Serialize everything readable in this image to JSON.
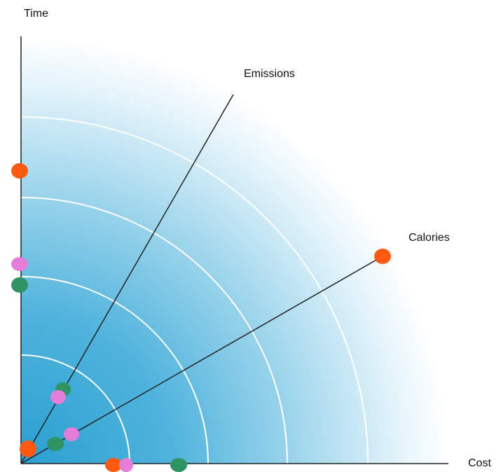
{
  "axes": {
    "time": "Time",
    "cost": "Cost",
    "emissions": "Emissions",
    "calories": "Calories"
  },
  "colors": {
    "gradient_center": "#2a9fd0",
    "gradient_edge": "#ffffff",
    "axis_line": "#222222",
    "ring": "#ffffff",
    "orange": "#ff5a10",
    "pink": "#e27ed8",
    "green": "#2e9463"
  },
  "markers": [
    {
      "axis": "time",
      "color": "orange",
      "name": "marker-time-orange"
    },
    {
      "axis": "time",
      "color": "pink",
      "name": "marker-time-pink"
    },
    {
      "axis": "time",
      "color": "green",
      "name": "marker-time-green"
    },
    {
      "axis": "cost",
      "color": "orange",
      "name": "marker-cost-orange"
    },
    {
      "axis": "cost",
      "color": "pink",
      "name": "marker-cost-pink"
    },
    {
      "axis": "cost",
      "color": "green",
      "name": "marker-cost-green"
    },
    {
      "axis": "emissions",
      "color": "green",
      "name": "marker-emissions-green"
    },
    {
      "axis": "emissions",
      "color": "pink",
      "name": "marker-emissions-pink"
    },
    {
      "axis": "calories",
      "color": "orange",
      "name": "marker-calories-orange-outer"
    },
    {
      "axis": "calories",
      "color": "pink",
      "name": "marker-calories-pink"
    },
    {
      "axis": "calories",
      "color": "green",
      "name": "marker-calories-green"
    },
    {
      "axis": "calories",
      "color": "orange",
      "name": "marker-calories-orange-origin"
    }
  ]
}
